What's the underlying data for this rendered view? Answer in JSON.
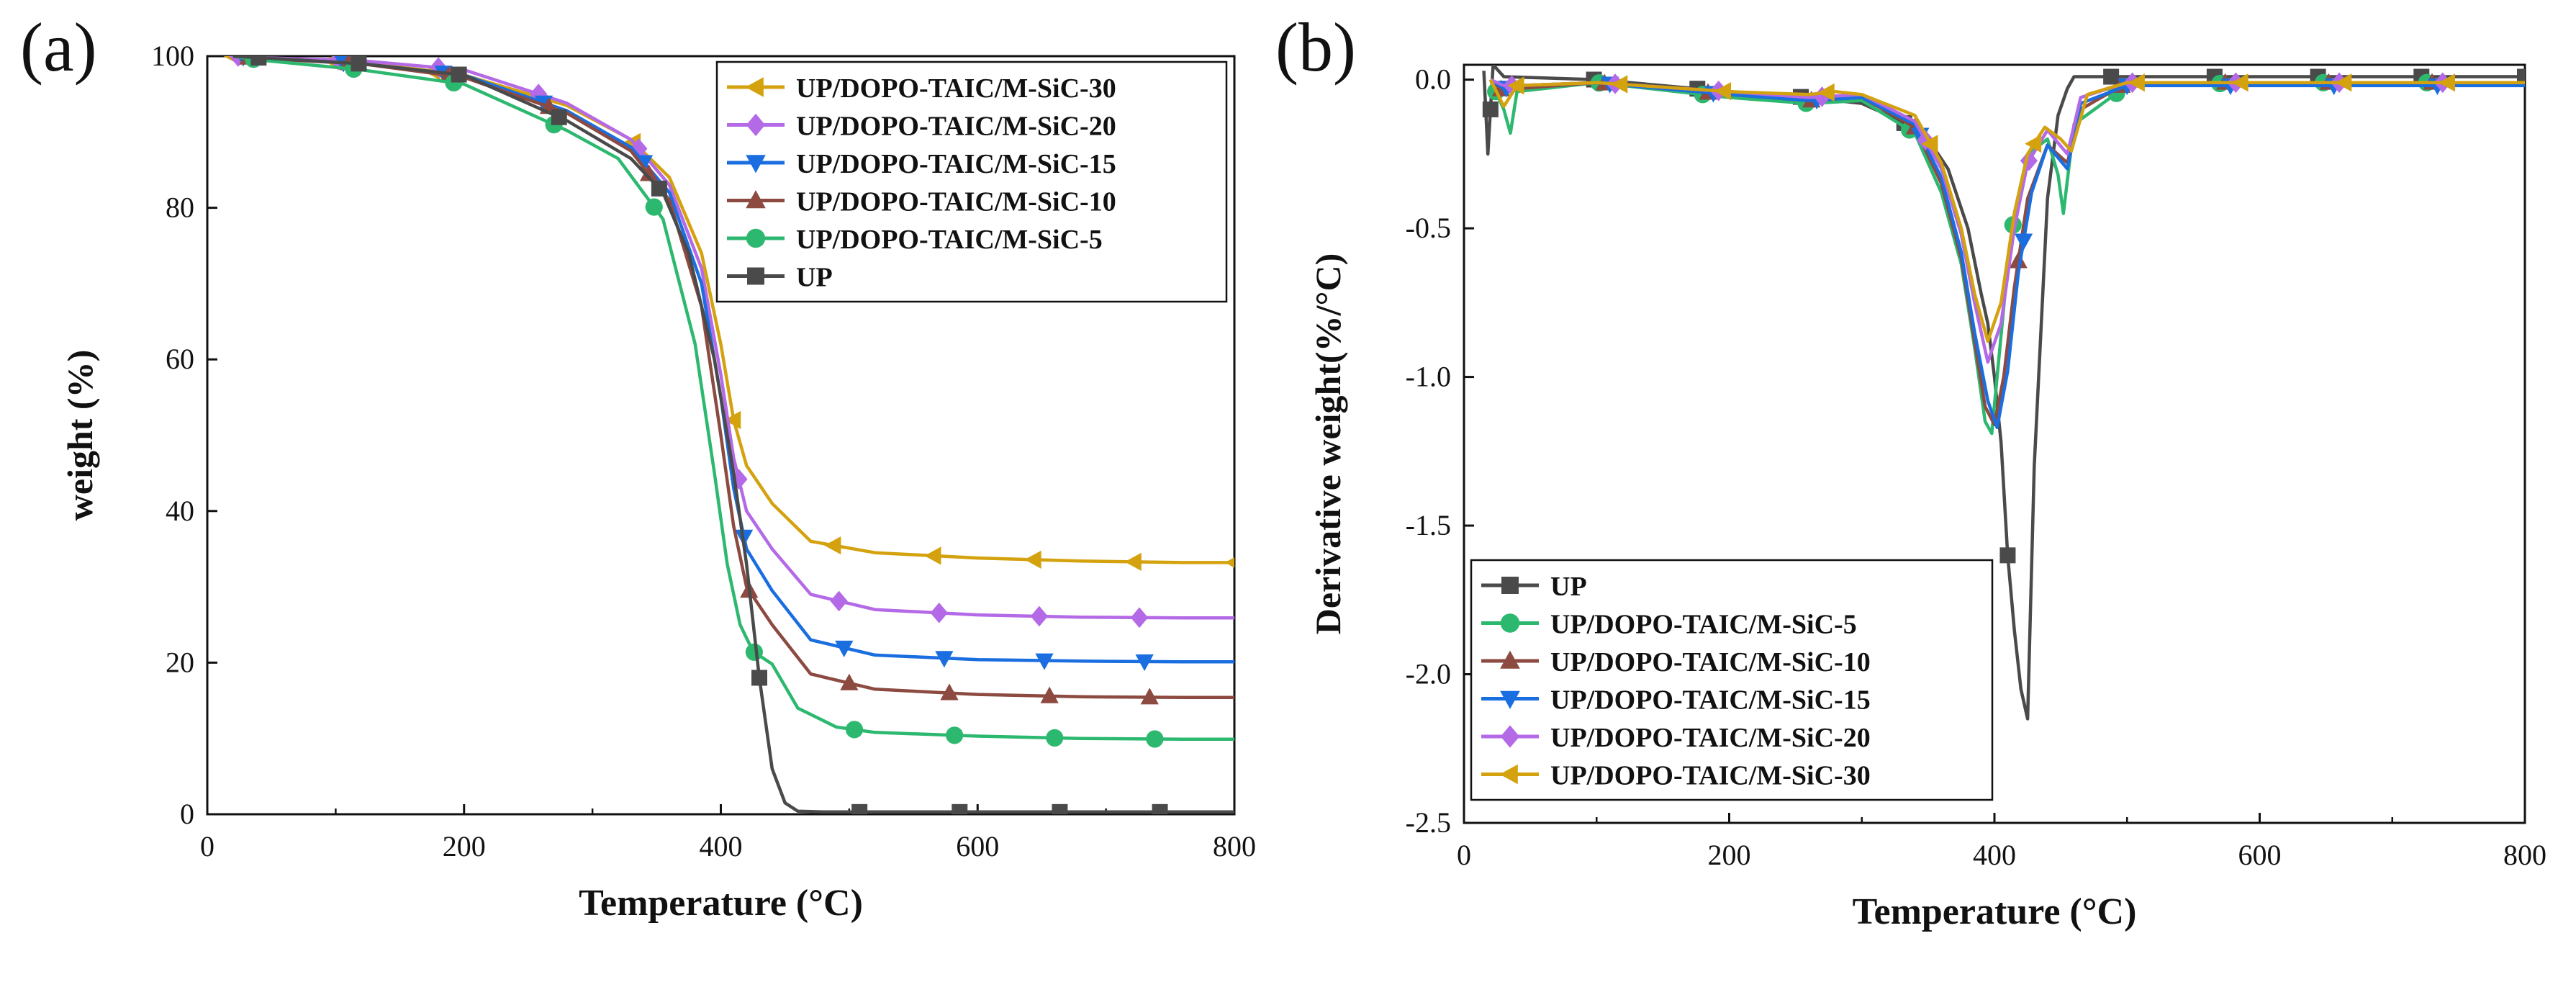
{
  "chart_data": [
    {
      "type": "line",
      "panel_label": "(a)",
      "xlabel": "Temperature (°C)",
      "ylabel": "weight (%)",
      "xlim": [
        0,
        800
      ],
      "ylim": [
        0,
        100
      ],
      "xticks": [
        "0",
        "200",
        "400",
        "600",
        "800"
      ],
      "yticks": [
        "0",
        "20",
        "40",
        "60",
        "80",
        "100"
      ],
      "legend_position": "top-right",
      "series": [
        {
          "name": "UP/DOPO-TAIC/M-SiC-30",
          "color": "#d4a20e",
          "marker": "triangle-left",
          "x": [
            20,
            40,
            120,
            200,
            280,
            330,
            360,
            385,
            400,
            410,
            420,
            440,
            470,
            520,
            600,
            680,
            760,
            800
          ],
          "y": [
            100,
            99.8,
            99.2,
            97.5,
            93.5,
            89,
            84,
            74,
            62,
            52,
            46,
            41,
            36,
            34.5,
            33.8,
            33.4,
            33.2,
            33.2
          ]
        },
        {
          "name": "UP/DOPO-TAIC/M-SiC-20",
          "color": "#b469e6",
          "marker": "diamond",
          "x": [
            20,
            40,
            120,
            200,
            280,
            330,
            360,
            385,
            400,
            410,
            420,
            440,
            470,
            520,
            600,
            680,
            760,
            800
          ],
          "y": [
            100,
            99.8,
            99.4,
            98.2,
            93.8,
            89,
            83,
            72,
            58,
            47,
            40,
            35,
            29,
            27,
            26.3,
            26,
            25.9,
            25.9
          ]
        },
        {
          "name": "UP/DOPO-TAIC/M-SiC-15",
          "color": "#1a6ee0",
          "marker": "triangle-down",
          "x": [
            20,
            40,
            120,
            200,
            280,
            330,
            360,
            385,
            400,
            410,
            420,
            440,
            470,
            520,
            600,
            680,
            760,
            800
          ],
          "y": [
            100,
            99.7,
            99,
            97.5,
            92.8,
            88,
            82,
            70,
            55,
            43,
            35,
            29.5,
            23,
            21,
            20.4,
            20.2,
            20.1,
            20.1
          ]
        },
        {
          "name": "UP/DOPO-TAIC/M-SiC-10",
          "color": "#8c4a40",
          "marker": "triangle-up",
          "x": [
            20,
            40,
            120,
            200,
            280,
            330,
            360,
            385,
            400,
            410,
            420,
            440,
            470,
            520,
            600,
            680,
            760,
            800
          ],
          "y": [
            100,
            99.7,
            99,
            97.2,
            92.5,
            87.5,
            81,
            67,
            50,
            38,
            30,
            25,
            18.5,
            16.5,
            15.8,
            15.5,
            15.4,
            15.4
          ]
        },
        {
          "name": "UP/DOPO-TAIC/M-SiC-5",
          "color": "#2db870",
          "marker": "circle",
          "x": [
            20,
            40,
            120,
            200,
            280,
            320,
            355,
            380,
            395,
            405,
            415,
            425,
            440,
            460,
            490,
            520,
            600,
            680,
            760,
            800
          ],
          "y": [
            100,
            99.5,
            98.2,
            96.3,
            90.2,
            86.5,
            78.5,
            62,
            45,
            33,
            25,
            21.5,
            19.8,
            14,
            11.5,
            10.8,
            10.3,
            10,
            9.9,
            9.9
          ]
        },
        {
          "name": "UP",
          "color": "#4a4a4a",
          "marker": "square",
          "x": [
            20,
            40,
            120,
            200,
            280,
            330,
            355,
            375,
            395,
            410,
            420,
            430,
            440,
            450,
            460,
            480,
            560,
            640,
            720,
            800
          ],
          "y": [
            100,
            99.8,
            99,
            97.5,
            91.5,
            86.5,
            82,
            74,
            60,
            45,
            33,
            18,
            6,
            1.5,
            0.4,
            0.3,
            0.3,
            0.3,
            0.3,
            0.3
          ]
        }
      ]
    },
    {
      "type": "line",
      "panel_label": "(b)",
      "xlabel": "Temperature (°C)",
      "ylabel": "Derivative weight(%/°C)",
      "xlim": [
        0,
        800
      ],
      "ylim": [
        -2.5,
        0.05
      ],
      "xticks": [
        "0",
        "200",
        "400",
        "600",
        "800"
      ],
      "yticks": [
        "0.0",
        "-0.5",
        "-1.0",
        "-1.5",
        "-2.0",
        "-2.5"
      ],
      "legend_position": "bottom-left",
      "series": [
        {
          "name": "UP",
          "color": "#4a4a4a",
          "marker": "square",
          "x": [
            15,
            18,
            22,
            30,
            100,
            200,
            260,
            300,
            330,
            350,
            365,
            380,
            390,
            395,
            400,
            405,
            410,
            415,
            420,
            425,
            430,
            440,
            448,
            455,
            460,
            500,
            600,
            700,
            800
          ],
          "y": [
            0.03,
            -0.25,
            0.05,
            0.01,
            0,
            -0.04,
            -0.06,
            -0.08,
            -0.14,
            -0.2,
            -0.3,
            -0.5,
            -0.72,
            -0.82,
            -1.0,
            -1.22,
            -1.6,
            -1.85,
            -2.05,
            -2.15,
            -1.3,
            -0.4,
            -0.12,
            -0.03,
            0.01,
            0.01,
            0.01,
            0.01,
            0.01
          ]
        },
        {
          "name": "UP/DOPO-TAIC/M-SiC-5",
          "color": "#2db870",
          "marker": "circle",
          "x": [
            20,
            30,
            35,
            40,
            100,
            200,
            260,
            300,
            340,
            360,
            375,
            385,
            393,
            398,
            402,
            408,
            415,
            425,
            440,
            448,
            452,
            460,
            500,
            600,
            700,
            800
          ],
          "y": [
            0,
            -0.1,
            -0.18,
            -0.04,
            -0.01,
            -0.06,
            -0.08,
            -0.07,
            -0.18,
            -0.38,
            -0.62,
            -0.9,
            -1.15,
            -1.19,
            -1.0,
            -0.72,
            -0.45,
            -0.25,
            -0.2,
            -0.32,
            -0.45,
            -0.15,
            -0.02,
            -0.01,
            -0.01,
            -0.01
          ]
        },
        {
          "name": "UP/DOPO-TAIC/M-SiC-10",
          "color": "#8c4a40",
          "marker": "triangle-up",
          "x": [
            20,
            30,
            40,
            100,
            200,
            260,
            300,
            340,
            360,
            375,
            385,
            393,
            400,
            407,
            415,
            425,
            440,
            455,
            465,
            500,
            600,
            700,
            800
          ],
          "y": [
            0,
            -0.04,
            -0.03,
            -0.01,
            -0.05,
            -0.07,
            -0.06,
            -0.16,
            -0.35,
            -0.6,
            -0.88,
            -1.1,
            -1.16,
            -1.0,
            -0.7,
            -0.4,
            -0.22,
            -0.28,
            -0.1,
            -0.01,
            -0.01,
            -0.01,
            -0.01
          ]
        },
        {
          "name": "UP/DOPO-TAIC/M-SiC-15",
          "color": "#1a6ee0",
          "marker": "triangle-down",
          "x": [
            20,
            30,
            40,
            100,
            200,
            260,
            300,
            340,
            360,
            375,
            385,
            395,
            402,
            410,
            418,
            428,
            440,
            455,
            465,
            500,
            600,
            700,
            800
          ],
          "y": [
            0,
            -0.03,
            -0.02,
            -0.01,
            -0.05,
            -0.07,
            -0.06,
            -0.15,
            -0.33,
            -0.58,
            -0.85,
            -1.08,
            -1.17,
            -0.98,
            -0.65,
            -0.38,
            -0.22,
            -0.3,
            -0.08,
            -0.02,
            -0.02,
            -0.02,
            -0.02
          ]
        },
        {
          "name": "UP/DOPO-TAIC/M-SiC-20",
          "color": "#b469e6",
          "marker": "diamond",
          "x": [
            20,
            30,
            40,
            100,
            200,
            260,
            300,
            340,
            360,
            375,
            385,
            395,
            405,
            415,
            425,
            440,
            455,
            465,
            500,
            600,
            700,
            800
          ],
          "y": [
            0,
            -0.02,
            -0.02,
            -0.01,
            -0.04,
            -0.06,
            -0.05,
            -0.14,
            -0.3,
            -0.52,
            -0.75,
            -0.95,
            -0.82,
            -0.5,
            -0.28,
            -0.17,
            -0.25,
            -0.06,
            -0.01,
            -0.01,
            -0.01,
            -0.01
          ]
        },
        {
          "name": "UP/DOPO-TAIC/M-SiC-30",
          "color": "#d4a20e",
          "marker": "triangle-left",
          "x": [
            20,
            30,
            40,
            100,
            200,
            260,
            280,
            300,
            340,
            360,
            375,
            385,
            395,
            405,
            415,
            425,
            438,
            450,
            458,
            470,
            500,
            600,
            700,
            800
          ],
          "y": [
            0,
            -0.09,
            -0.02,
            -0.01,
            -0.04,
            -0.05,
            -0.04,
            -0.05,
            -0.12,
            -0.28,
            -0.5,
            -0.72,
            -0.88,
            -0.75,
            -0.45,
            -0.25,
            -0.16,
            -0.2,
            -0.24,
            -0.05,
            -0.01,
            -0.01,
            -0.01,
            -0.01
          ]
        }
      ]
    }
  ]
}
